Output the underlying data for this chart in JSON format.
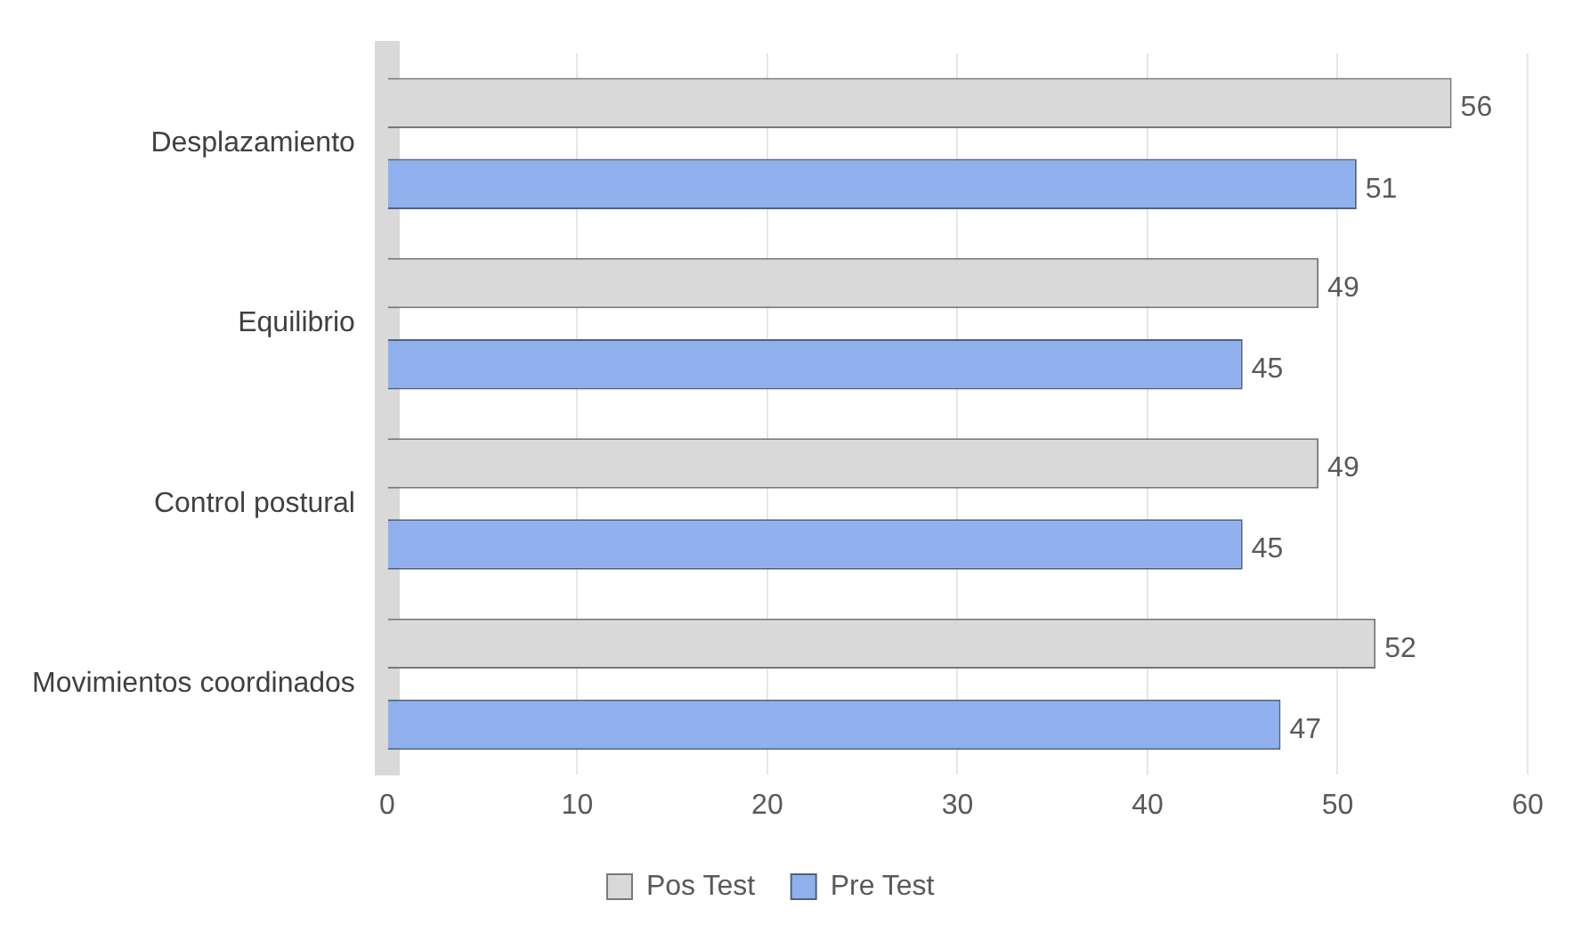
{
  "chart_data": {
    "type": "bar",
    "orientation": "horizontal",
    "categories": [
      "Desplazamiento",
      "Equilibrio",
      "Control postural",
      "Movimientos coordinados"
    ],
    "series": [
      {
        "name": "Pos Test",
        "color": "#d9d9d9",
        "values": [
          56,
          49,
          49,
          52
        ]
      },
      {
        "name": "Pre Test",
        "color": "#8fb0ec",
        "values": [
          51,
          45,
          45,
          47
        ]
      }
    ],
    "xlim": [
      0,
      60
    ],
    "xticks": [
      0,
      10,
      20,
      30,
      40,
      50,
      60
    ],
    "grid": "x",
    "legend": "bottom",
    "data_labels": true
  }
}
